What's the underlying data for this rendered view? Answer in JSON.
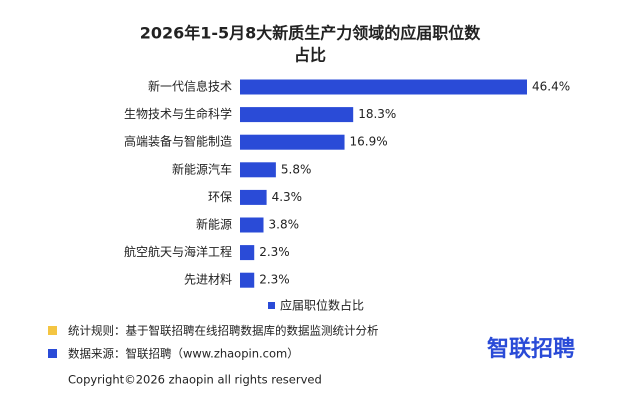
{
  "chart_data": {
    "type": "bar",
    "orientation": "horizontal",
    "title": "2026年1-5月8大新质生产力领域的应届职位数",
    "title_line2": "占比",
    "categories": [
      "新一代信息技术",
      "生物技术与生命科学",
      "高端装备与智能制造",
      "新能源汽车",
      "环保",
      "新能源",
      "航空航天与海洋工程",
      "先进材料"
    ],
    "series": [
      {
        "name": "应届职位数占比",
        "color": "#2a4bd7",
        "values": [
          46.4,
          18.3,
          16.9,
          5.8,
          4.3,
          3.8,
          2.3,
          2.3
        ],
        "value_labels": [
          "46.4%",
          "18.3%",
          "16.9%",
          "5.8%",
          "4.3%",
          "3.8%",
          "2.3%",
          "2.3%"
        ]
      }
    ]
  },
  "footer": {
    "rule": "统计规则：基于智联招聘在线招聘数据库的数据监测统计分析",
    "source": "数据来源：智联招聘（www.zhaopin.com）",
    "logo": "智联招聘",
    "copyright": "Copyright©2026 zhaopin all rights reserved"
  }
}
